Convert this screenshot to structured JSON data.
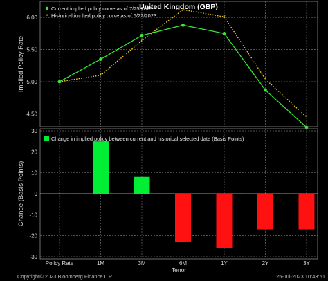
{
  "chart_data": [
    {
      "type": "line",
      "title": "United Kingdom (GBP)",
      "ylabel": "Implied Policy Rate",
      "categories": [
        "Policy Rate",
        "1M",
        "3M",
        "6M",
        "1Y",
        "2Y",
        "3Y"
      ],
      "ylim": [
        4.3,
        6.25
      ],
      "yticks": [
        4.5,
        5.0,
        5.5,
        6.0
      ],
      "ytick_labels": [
        "4.50",
        "5.00",
        "5.50",
        "6.00"
      ],
      "grid": true,
      "legend_position": "top-left",
      "series": [
        {
          "name": "Current implied policy curve as of 7/25/2023",
          "values": [
            5.0,
            5.35,
            5.72,
            5.88,
            5.75,
            4.87,
            4.29
          ],
          "color": "#39e639",
          "style": "solid"
        },
        {
          "name": "Historical implied policy curve as of 6/22/2023",
          "values": [
            5.0,
            5.1,
            5.64,
            6.12,
            6.01,
            5.04,
            4.45
          ],
          "color": "#f2cf1b",
          "style": "dotted"
        }
      ]
    },
    {
      "type": "bar",
      "ylabel": "Change (Basis Points)",
      "xlabel": "Tenor",
      "categories": [
        "Policy Rate",
        "1M",
        "3M",
        "6M",
        "1Y",
        "2Y",
        "3Y"
      ],
      "ylim": [
        -31,
        31
      ],
      "yticks": [
        -30,
        -20,
        -10,
        0,
        10,
        20,
        30
      ],
      "ytick_labels": [
        "-30",
        "-20",
        "-10",
        "0",
        "10",
        "20",
        "30"
      ],
      "grid": true,
      "legend_position": "top-left",
      "series": [
        {
          "name": "Change in implied policy between current and historical selected date (Basis Points)",
          "values": [
            0,
            25,
            8,
            -23,
            -26,
            -17,
            -17
          ]
        }
      ],
      "positive_color": "#00ee33",
      "negative_color": "#ff1111"
    }
  ],
  "footer": {
    "copyright": "Copyright© 2023 Bloomberg Finance L.P.",
    "timestamp": "25-Jul-2023 10:43:51"
  }
}
